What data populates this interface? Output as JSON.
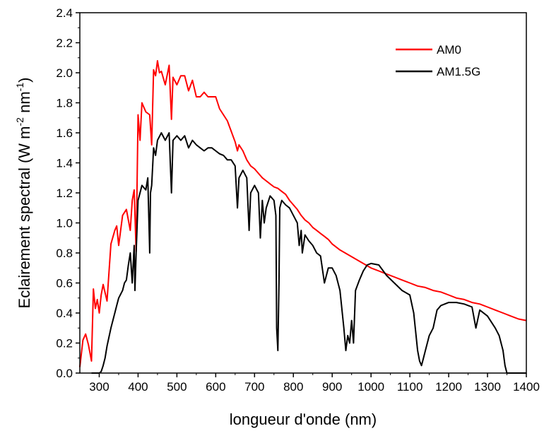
{
  "chart_data": {
    "type": "line",
    "xlabel": "longueur d'onde (nm)",
    "ylabel": {
      "text": "Eclairement spectral (W m",
      "sup1": "-2",
      "mid": " nm",
      "sup2": "-1",
      "end": ")"
    },
    "xlim": [
      250,
      1400
    ],
    "ylim": [
      0,
      2.4
    ],
    "xticks": [
      300,
      400,
      500,
      600,
      700,
      800,
      900,
      1000,
      1100,
      1200,
      1300,
      1400
    ],
    "xtick_labels": [
      "300",
      "400",
      "500",
      "600",
      "700",
      "800",
      "900",
      "1000",
      "1100",
      "1200",
      "1300",
      "1400"
    ],
    "yticks": [
      0,
      0.2,
      0.4,
      0.6,
      0.8,
      1.0,
      1.2,
      1.4,
      1.6,
      1.8,
      2.0,
      2.2,
      2.4
    ],
    "ytick_labels": [
      "0.0",
      "0.2",
      "0.4",
      "0.6",
      "0.8",
      "1.0",
      "1.2",
      "1.4",
      "1.6",
      "1.8",
      "2.0",
      "2.2",
      "2.4"
    ],
    "grid": false,
    "legend_position": "top-right",
    "series": [
      {
        "name": "AM0",
        "color": "#ff0000",
        "x": [
          250,
          258,
          265,
          272,
          280,
          285,
          290,
          295,
          300,
          305,
          310,
          320,
          330,
          340,
          345,
          350,
          360,
          370,
          380,
          385,
          390,
          395,
          400,
          405,
          410,
          420,
          430,
          435,
          440,
          445,
          450,
          455,
          460,
          470,
          480,
          486,
          490,
          500,
          510,
          520,
          530,
          540,
          550,
          560,
          570,
          580,
          590,
          600,
          610,
          620,
          630,
          640,
          650,
          656,
          660,
          670,
          680,
          690,
          700,
          710,
          720,
          730,
          740,
          750,
          760,
          770,
          780,
          790,
          800,
          810,
          820,
          830,
          840,
          850,
          860,
          870,
          880,
          890,
          900,
          920,
          940,
          960,
          980,
          1000,
          1020,
          1040,
          1060,
          1080,
          1100,
          1120,
          1140,
          1160,
          1180,
          1200,
          1220,
          1240,
          1260,
          1280,
          1300,
          1320,
          1340,
          1360,
          1380,
          1400
        ],
        "y": [
          0.04,
          0.22,
          0.26,
          0.19,
          0.08,
          0.56,
          0.43,
          0.49,
          0.4,
          0.52,
          0.59,
          0.48,
          0.86,
          0.95,
          0.98,
          0.85,
          1.05,
          1.09,
          0.95,
          1.15,
          1.22,
          0.81,
          1.72,
          1.55,
          1.8,
          1.74,
          1.72,
          1.52,
          2.02,
          1.98,
          2.08,
          2.0,
          2.01,
          1.92,
          2.05,
          1.69,
          1.97,
          1.92,
          1.98,
          1.98,
          1.88,
          1.95,
          1.84,
          1.84,
          1.87,
          1.84,
          1.84,
          1.84,
          1.76,
          1.72,
          1.68,
          1.61,
          1.54,
          1.48,
          1.52,
          1.48,
          1.42,
          1.38,
          1.36,
          1.33,
          1.3,
          1.28,
          1.26,
          1.24,
          1.23,
          1.21,
          1.19,
          1.15,
          1.12,
          1.09,
          1.05,
          1.02,
          1.0,
          0.97,
          0.95,
          0.93,
          0.91,
          0.89,
          0.86,
          0.82,
          0.79,
          0.76,
          0.73,
          0.7,
          0.68,
          0.66,
          0.64,
          0.62,
          0.6,
          0.58,
          0.57,
          0.55,
          0.54,
          0.52,
          0.5,
          0.49,
          0.47,
          0.46,
          0.44,
          0.42,
          0.4,
          0.38,
          0.36,
          0.35
        ]
      },
      {
        "name": "AM1.5G",
        "color": "#000000",
        "x": [
          280,
          300,
          305,
          310,
          315,
          320,
          330,
          340,
          345,
          350,
          360,
          365,
          370,
          375,
          380,
          385,
          390,
          392,
          395,
          400,
          405,
          410,
          420,
          425,
          430,
          432,
          435,
          440,
          445,
          450,
          460,
          470,
          480,
          486,
          490,
          500,
          510,
          520,
          530,
          540,
          550,
          560,
          570,
          580,
          590,
          600,
          610,
          620,
          630,
          640,
          650,
          656,
          660,
          670,
          680,
          686,
          690,
          700,
          710,
          715,
          720,
          725,
          730,
          740,
          750,
          755,
          757,
          760,
          763,
          765,
          770,
          780,
          790,
          800,
          810,
          815,
          820,
          823,
          830,
          840,
          850,
          860,
          870,
          880,
          890,
          900,
          910,
          920,
          930,
          935,
          940,
          945,
          950,
          955,
          960,
          970,
          980,
          990,
          1000,
          1020,
          1040,
          1060,
          1080,
          1100,
          1110,
          1120,
          1125,
          1130,
          1135,
          1140,
          1150,
          1160,
          1170,
          1180,
          1200,
          1220,
          1240,
          1260,
          1270,
          1280,
          1300,
          1320,
          1330,
          1340,
          1345,
          1350,
          1360,
          1400
        ],
        "y": [
          0.0,
          0.0,
          0.01,
          0.05,
          0.1,
          0.18,
          0.3,
          0.4,
          0.45,
          0.5,
          0.55,
          0.6,
          0.62,
          0.72,
          0.8,
          0.6,
          0.85,
          0.55,
          0.8,
          1.15,
          1.2,
          1.25,
          1.22,
          1.3,
          0.8,
          1.2,
          1.25,
          1.5,
          1.45,
          1.55,
          1.6,
          1.55,
          1.6,
          1.2,
          1.55,
          1.58,
          1.55,
          1.58,
          1.5,
          1.55,
          1.52,
          1.5,
          1.48,
          1.5,
          1.5,
          1.48,
          1.46,
          1.45,
          1.42,
          1.42,
          1.38,
          1.1,
          1.3,
          1.35,
          1.3,
          0.95,
          1.2,
          1.25,
          1.2,
          0.9,
          1.15,
          1.0,
          1.1,
          1.18,
          1.15,
          1.05,
          0.3,
          0.15,
          0.6,
          1.1,
          1.15,
          1.12,
          1.1,
          1.05,
          1.0,
          0.85,
          0.95,
          0.8,
          0.92,
          0.88,
          0.85,
          0.8,
          0.78,
          0.6,
          0.7,
          0.7,
          0.65,
          0.55,
          0.3,
          0.15,
          0.25,
          0.2,
          0.35,
          0.2,
          0.55,
          0.62,
          0.68,
          0.72,
          0.73,
          0.72,
          0.65,
          0.6,
          0.55,
          0.52,
          0.4,
          0.15,
          0.08,
          0.05,
          0.1,
          0.15,
          0.25,
          0.3,
          0.42,
          0.45,
          0.47,
          0.47,
          0.46,
          0.44,
          0.3,
          0.42,
          0.38,
          0.3,
          0.25,
          0.15,
          0.05,
          0.0,
          0.0,
          0.0
        ]
      }
    ]
  }
}
